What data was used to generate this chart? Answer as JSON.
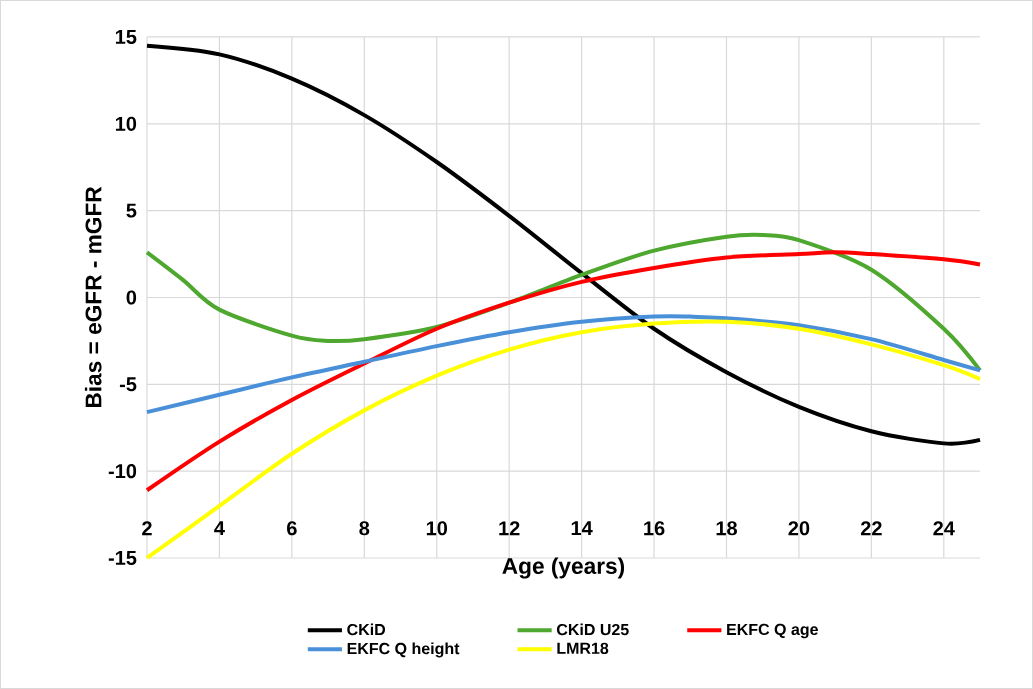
{
  "chart_data": {
    "type": "line",
    "xlabel": "Age (years)",
    "ylabel": "Bias = eGFR - mGFR",
    "x": [
      2,
      4,
      6,
      8,
      10,
      12,
      14,
      16,
      18,
      20,
      22,
      24,
      25
    ],
    "series": [
      {
        "name": "CKiD",
        "color": "#000000",
        "values": [
          14.5,
          14.0,
          12.6,
          10.5,
          7.8,
          4.7,
          1.4,
          -1.8,
          -4.3,
          -6.3,
          -7.7,
          -8.4,
          -8.2
        ]
      },
      {
        "name": "CKiD U25",
        "color": "#4ea72e",
        "x": [
          2,
          3,
          4,
          6,
          7,
          8,
          10,
          12,
          14,
          16,
          18,
          19,
          20,
          22,
          24,
          25
        ],
        "values": [
          2.6,
          1.0,
          -0.7,
          -2.2,
          -2.5,
          -2.4,
          -1.7,
          -0.3,
          1.3,
          2.7,
          3.5,
          3.6,
          3.3,
          1.6,
          -1.8,
          -4.2
        ]
      },
      {
        "name": "EKFC Q age",
        "color": "#ff0000",
        "x": [
          2,
          4,
          6,
          8,
          10,
          12,
          14,
          16,
          18,
          20,
          21,
          22,
          24,
          25
        ],
        "values": [
          -11.1,
          -8.3,
          -5.9,
          -3.8,
          -1.8,
          -0.3,
          0.9,
          1.7,
          2.3,
          2.5,
          2.6,
          2.5,
          2.2,
          1.9
        ]
      },
      {
        "name": "EKFC Q height",
        "color": "#4a90d9",
        "x": [
          2,
          4,
          6,
          8,
          10,
          12,
          14,
          16,
          17,
          18,
          20,
          22,
          24,
          25
        ],
        "values": [
          -6.6,
          -5.6,
          -4.6,
          -3.7,
          -2.8,
          -2.0,
          -1.4,
          -1.1,
          -1.1,
          -1.2,
          -1.6,
          -2.4,
          -3.6,
          -4.2
        ]
      },
      {
        "name": "LMR18",
        "color": "#ffff00",
        "values": [
          -15.0,
          -12.0,
          -9.0,
          -6.5,
          -4.5,
          -3.0,
          -2.0,
          -1.5,
          -1.4,
          -1.8,
          -2.7,
          -3.9,
          -4.7
        ]
      }
    ],
    "xlim": [
      2,
      25
    ],
    "ylim": [
      -15,
      15
    ],
    "xticks": [
      2,
      4,
      6,
      8,
      10,
      12,
      14,
      16,
      18,
      20,
      22,
      24
    ],
    "yticks": [
      -15,
      -10,
      -5,
      0,
      5,
      10,
      15
    ],
    "grid": true,
    "legend": "bottom",
    "line_style": "solid",
    "marker": "none"
  }
}
